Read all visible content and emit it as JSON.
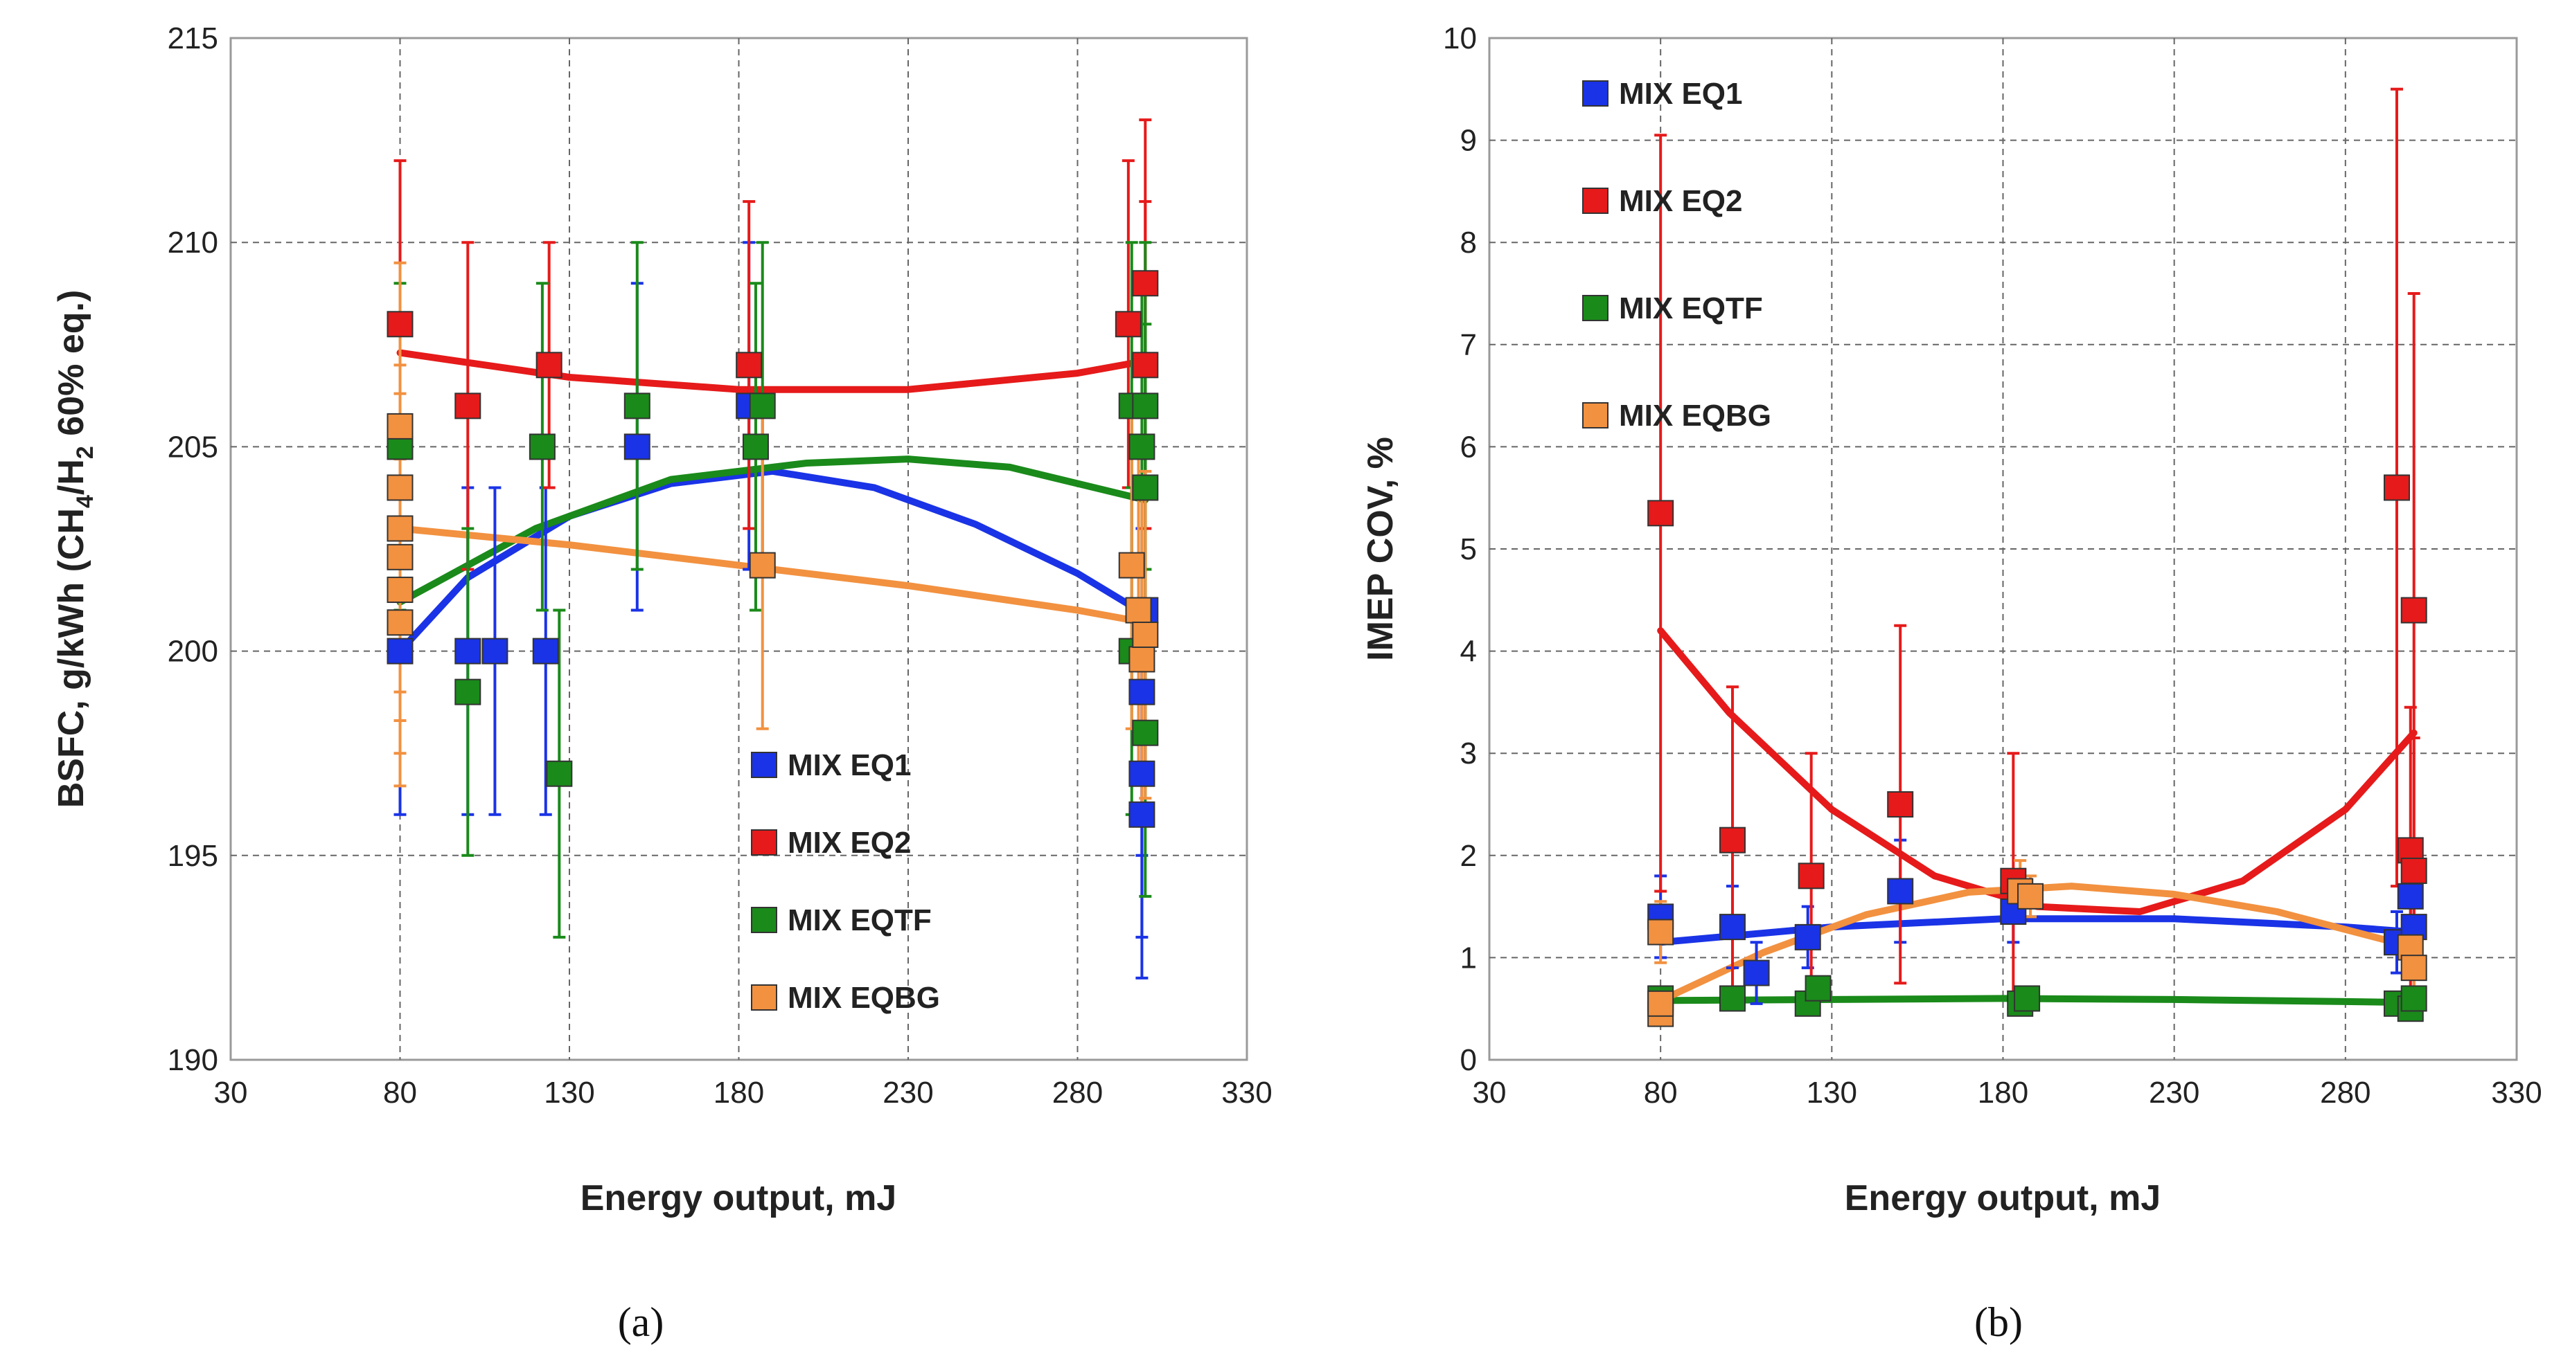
{
  "colors": {
    "MIX EQ1": "#1a33e6",
    "MIX EQ2": "#e61a1a",
    "MIX EQTF": "#1a8a1a",
    "MIX EQBG": "#f29140",
    "grid": "#666666",
    "frame": "#9a9a9a"
  },
  "chart_data": [
    {
      "id": "a",
      "type": "scatter",
      "caption": "(a)",
      "xlabel": "Energy output, mJ",
      "ylabel_parts": [
        "BSFC,  g/kWh (CH",
        "4",
        "/H",
        "2",
        "  60% eq.)"
      ],
      "xlim": [
        30,
        330
      ],
      "ylim": [
        190,
        215
      ],
      "xticks": [
        "30",
        "80",
        "130",
        "180",
        "230",
        "280",
        "330"
      ],
      "yticks": [
        "190",
        "195",
        "200",
        "205",
        "210",
        "215"
      ],
      "grid": true,
      "legend_position": "bottom-right",
      "series": [
        {
          "name": "MIX EQ1",
          "points": [
            [
              80,
              200,
              4
            ],
            [
              100,
              200,
              4
            ],
            [
              108,
              200,
              4
            ],
            [
              123,
              200,
              4
            ],
            [
              150,
              205,
              4
            ],
            [
              183,
              206,
              4
            ],
            [
              299,
              196,
              4
            ],
            [
              299,
              197,
              4
            ],
            [
              299,
              199,
              4
            ],
            [
              300,
              201,
              4
            ]
          ],
          "fit": [
            [
              80,
              200
            ],
            [
              100,
              201.8
            ],
            [
              130,
              203.3
            ],
            [
              160,
              204.1
            ],
            [
              190,
              204.4
            ],
            [
              220,
              204.0
            ],
            [
              250,
              203.1
            ],
            [
              280,
              201.9
            ],
            [
              300,
              200.9
            ]
          ]
        },
        {
          "name": "MIX EQ2",
          "points": [
            [
              80,
              208,
              4
            ],
            [
              100,
              206,
              4
            ],
            [
              124,
              207,
              3
            ],
            [
              183,
              207,
              4
            ],
            [
              295,
              208,
              4
            ],
            [
              300,
              209,
              4
            ],
            [
              300,
              207,
              4
            ]
          ],
          "fit": [
            [
              80,
              207.3
            ],
            [
              130,
              206.7
            ],
            [
              180,
              206.4
            ],
            [
              230,
              206.4
            ],
            [
              280,
              206.8
            ],
            [
              300,
              207.1
            ]
          ]
        },
        {
          "name": "MIX EQTF",
          "points": [
            [
              80,
              205,
              4
            ],
            [
              100,
              199,
              4
            ],
            [
              122,
              205,
              4
            ],
            [
              127,
              197,
              4
            ],
            [
              150,
              206,
              4
            ],
            [
              185,
              205,
              4
            ],
            [
              187,
              206,
              4
            ],
            [
              296,
              200,
              4
            ],
            [
              296,
              206,
              4
            ],
            [
              299,
              205,
              4
            ],
            [
              300,
              206,
              4
            ],
            [
              300,
              204,
              4
            ],
            [
              300,
              198,
              4
            ]
          ],
          "fit": [
            [
              80,
              201.2
            ],
            [
              120,
              203.0
            ],
            [
              160,
              204.2
            ],
            [
              200,
              204.6
            ],
            [
              230,
              204.7
            ],
            [
              260,
              204.5
            ],
            [
              300,
              203.7
            ]
          ]
        },
        {
          "name": "MIX EQBG",
          "points": [
            [
              80,
              205.5,
              4
            ],
            [
              80,
              204,
              4
            ],
            [
              80,
              203,
              4
            ],
            [
              80,
              202.3,
              4
            ],
            [
              80,
              201.5,
              4
            ],
            [
              80,
              200.7,
              4
            ],
            [
              187,
              202.1,
              4
            ],
            [
              296,
              202.1,
              4
            ],
            [
              298,
              201,
              4
            ],
            [
              299,
              199.8,
              4
            ],
            [
              300,
              200.4,
              4
            ]
          ],
          "fit": [
            [
              80,
              203.0
            ],
            [
              130,
              202.6
            ],
            [
              180,
              202.1
            ],
            [
              230,
              201.6
            ],
            [
              280,
              201.0
            ],
            [
              300,
              200.7
            ]
          ]
        }
      ]
    },
    {
      "id": "b",
      "type": "scatter",
      "caption": "(b)",
      "xlabel": "Energy output, mJ",
      "ylabel_parts": [
        "IMEP COV, %"
      ],
      "xlim": [
        30,
        330
      ],
      "ylim": [
        0,
        10
      ],
      "xticks": [
        "30",
        "80",
        "130",
        "180",
        "230",
        "280",
        "330"
      ],
      "yticks": [
        "0",
        "1",
        "2",
        "3",
        "4",
        "5",
        "6",
        "7",
        "8",
        "9",
        "10"
      ],
      "grid": true,
      "legend_position": "top-left",
      "series": [
        {
          "name": "MIX EQ1",
          "points": [
            [
              80,
              1.4,
              0.4
            ],
            [
              101,
              1.3,
              0.4
            ],
            [
              108,
              0.85,
              0.3
            ],
            [
              123,
              1.2,
              0.3
            ],
            [
              150,
              1.65,
              0.5
            ],
            [
              183,
              1.45,
              0.3
            ],
            [
              295,
              1.15,
              0.3
            ],
            [
              299,
              1.6,
              0.4
            ],
            [
              300,
              1.3,
              0.3
            ]
          ],
          "fit": [
            [
              80,
              1.15
            ],
            [
              130,
              1.3
            ],
            [
              180,
              1.38
            ],
            [
              230,
              1.38
            ],
            [
              280,
              1.3
            ],
            [
              300,
              1.25
            ]
          ]
        },
        {
          "name": "MIX EQ2",
          "points": [
            [
              80,
              5.35,
              3.7
            ],
            [
              101,
              2.15,
              1.5
            ],
            [
              124,
              1.8,
              1.2
            ],
            [
              150,
              2.5,
              1.75
            ],
            [
              183,
              1.75,
              1.25
            ],
            [
              295,
              5.6,
              3.9
            ],
            [
              299,
              2.05,
              1.4
            ],
            [
              300,
              1.85,
              1.3
            ],
            [
              300,
              4.4,
              3.1
            ]
          ],
          "fit": [
            [
              80,
              4.2
            ],
            [
              100,
              3.4
            ],
            [
              130,
              2.45
            ],
            [
              160,
              1.8
            ],
            [
              190,
              1.5
            ],
            [
              220,
              1.45
            ],
            [
              250,
              1.75
            ],
            [
              280,
              2.45
            ],
            [
              300,
              3.2
            ]
          ]
        },
        {
          "name": "MIX EQTF",
          "points": [
            [
              80,
              0.6,
              0
            ],
            [
              101,
              0.6,
              0
            ],
            [
              123,
              0.55,
              0
            ],
            [
              126,
              0.7,
              0
            ],
            [
              185,
              0.55,
              0
            ],
            [
              187,
              0.6,
              0
            ],
            [
              295,
              0.55,
              0
            ],
            [
              299,
              0.5,
              0
            ],
            [
              300,
              0.6,
              0
            ]
          ],
          "fit": [
            [
              80,
              0.58
            ],
            [
              130,
              0.59
            ],
            [
              180,
              0.6
            ],
            [
              230,
              0.59
            ],
            [
              280,
              0.57
            ],
            [
              300,
              0.56
            ]
          ]
        },
        {
          "name": "MIX EQBG",
          "points": [
            [
              80,
              1.25,
              0.3
            ],
            [
              80,
              0.45,
              0
            ],
            [
              80,
              0.55,
              0
            ],
            [
              185,
              1.65,
              0.3
            ],
            [
              188,
              1.6,
              0.2
            ],
            [
              299,
              1.1,
              0.2
            ],
            [
              300,
              0.9,
              0.2
            ]
          ],
          "fit": [
            [
              80,
              0.58
            ],
            [
              110,
              1.05
            ],
            [
              140,
              1.42
            ],
            [
              170,
              1.64
            ],
            [
              200,
              1.7
            ],
            [
              230,
              1.62
            ],
            [
              260,
              1.45
            ],
            [
              300,
              1.1
            ]
          ]
        }
      ]
    }
  ]
}
